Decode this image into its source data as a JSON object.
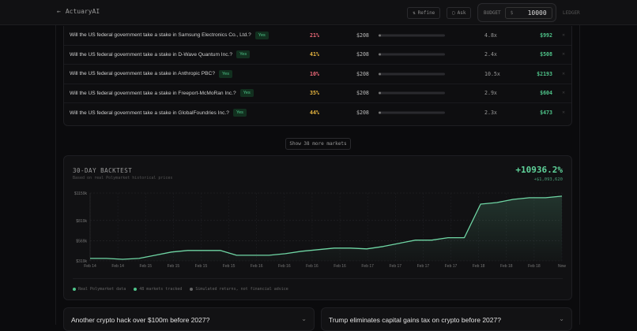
{
  "header": {
    "back_icon": "arrow-left-icon",
    "app_name": "ActuaryAI",
    "refine_label": "Refine",
    "ask_label": "Ask",
    "budget_label": "BUDGET",
    "currency": "$",
    "budget_value": "10000",
    "ledger_label": "LEDGER"
  },
  "markets": [
    {
      "question": "Will the US federal government take a stake in Samsung Electronics Co., Ltd.?",
      "side": "Yes",
      "prob": "21%",
      "prob_color": "#f06a7a",
      "stake": "$208",
      "multiplier": "4.8x",
      "payout": "$992"
    },
    {
      "question": "Will the US federal government take a stake in D-Wave Quantum Inc.?",
      "side": "Yes",
      "prob": "41%",
      "prob_color": "#e8b640",
      "stake": "$208",
      "multiplier": "2.4x",
      "payout": "$508"
    },
    {
      "question": "Will the US federal government take a stake in Anthropic PBC?",
      "side": "Yes",
      "prob": "10%",
      "prob_color": "#f06a7a",
      "stake": "$208",
      "multiplier": "10.5x",
      "payout": "$2193"
    },
    {
      "question": "Will the US federal government take a stake in Freeport-McMoRan Inc.?",
      "side": "Yes",
      "prob": "35%",
      "prob_color": "#e8b640",
      "stake": "$208",
      "multiplier": "2.9x",
      "payout": "$604"
    },
    {
      "question": "Will the US federal government take a stake in GlobalFoundries Inc.?",
      "side": "Yes",
      "prob": "44%",
      "prob_color": "#e8b640",
      "stake": "$208",
      "multiplier": "2.3x",
      "payout": "$473"
    }
  ],
  "show_more_label": "Show 38 more markets",
  "backtest": {
    "title": "30-DAY BACKTEST",
    "subtitle": "Based on real Polymarket historical prices",
    "return_pct": "+10936.2%",
    "return_usd": "+$1,093,620",
    "legend": [
      "Real Polymarket data",
      "48 markets tracked",
      "Simulated returns, not financial advice"
    ]
  },
  "chart_data": {
    "type": "area",
    "ylim": [
      319000,
      1159000
    ],
    "grid": true,
    "yticks": [
      "$1159k",
      "$819k",
      "$569k",
      "$319k"
    ],
    "ytick_values": [
      1159000,
      819000,
      569000,
      319000
    ],
    "xticks": [
      "Feb 14",
      "Feb 14",
      "Feb 15",
      "Feb 15",
      "Feb 15",
      "Feb 15",
      "Feb 16",
      "Feb 16",
      "Feb 16",
      "Feb 16",
      "Feb 17",
      "Feb 17",
      "Feb 17",
      "Feb 17",
      "Feb 18",
      "Feb 18",
      "Feb 18",
      "Now"
    ],
    "values": [
      349000,
      349000,
      339000,
      349000,
      388000,
      428000,
      448000,
      448000,
      448000,
      388000,
      388000,
      388000,
      408000,
      438000,
      458000,
      477000,
      477000,
      467000,
      497000,
      537000,
      576000,
      576000,
      606000,
      606000,
      1022000,
      1042000,
      1081000,
      1101000,
      1101000,
      1121000
    ],
    "color": "#6fd6a4"
  },
  "cards": [
    {
      "title": "Another crypto hack over $100m before 2027?"
    },
    {
      "title": "Trump eliminates capital gains tax on crypto before 2027?"
    }
  ]
}
